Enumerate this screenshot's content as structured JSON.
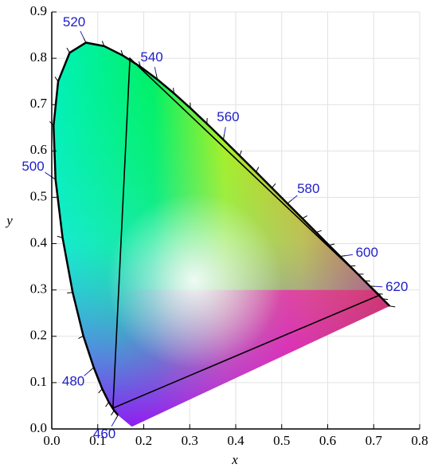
{
  "chart_data": {
    "type": "chromaticity",
    "xlabel": "x",
    "ylabel": "y",
    "xlim": [
      0,
      0.8
    ],
    "ylim": [
      0,
      0.9
    ],
    "xticks": [
      {
        "value": 0,
        "label": "0.0"
      },
      0.1,
      0.2,
      0.3,
      0.4,
      0.5,
      0.6,
      0.7,
      0.8
    ],
    "yticks": [
      {
        "value": 0,
        "label": "0.0"
      },
      0.1,
      0.2,
      0.3,
      0.4,
      0.5,
      0.6,
      0.7,
      0.8,
      0.9
    ],
    "grid": true,
    "spectral_locus": {
      "wavelengths": [
        460,
        465,
        470,
        475,
        480,
        485,
        490,
        495,
        500,
        505,
        510,
        515,
        520,
        525,
        530,
        535,
        540,
        545,
        550,
        555,
        560,
        565,
        570,
        575,
        580,
        585,
        590,
        595,
        600,
        605,
        610,
        615,
        620,
        630,
        640,
        700
      ],
      "x": [
        0.144,
        0.1355,
        0.1241,
        0.1096,
        0.0913,
        0.0687,
        0.0454,
        0.0235,
        0.0082,
        0.0039,
        0.0139,
        0.0389,
        0.0743,
        0.1142,
        0.1547,
        0.1929,
        0.2296,
        0.2658,
        0.3016,
        0.3373,
        0.3731,
        0.4087,
        0.4441,
        0.4788,
        0.5125,
        0.5448,
        0.5752,
        0.6029,
        0.627,
        0.6482,
        0.6658,
        0.6801,
        0.6915,
        0.7079,
        0.719,
        0.7347
      ],
      "y": [
        0.0297,
        0.0399,
        0.0578,
        0.0868,
        0.1327,
        0.2007,
        0.295,
        0.4127,
        0.5384,
        0.6548,
        0.7502,
        0.812,
        0.8338,
        0.8262,
        0.8059,
        0.7816,
        0.7543,
        0.7243,
        0.6923,
        0.6589,
        0.6245,
        0.5896,
        0.5547,
        0.5202,
        0.4866,
        0.4544,
        0.4242,
        0.3965,
        0.3725,
        0.3514,
        0.334,
        0.3197,
        0.3083,
        0.292,
        0.2809,
        0.2653
      ],
      "color": "#000000"
    },
    "purple_line_start": {
      "x": 0.1741,
      "y": 0.005
    },
    "wavelength_labels": [
      460,
      480,
      500,
      520,
      540,
      560,
      580,
      600,
      620
    ],
    "label_color": "#2020c8",
    "gamut": {
      "x": [
        0.133,
        0.17,
        0.713
      ],
      "y": [
        0.045,
        0.8,
        0.289
      ],
      "color": "#000000"
    }
  }
}
